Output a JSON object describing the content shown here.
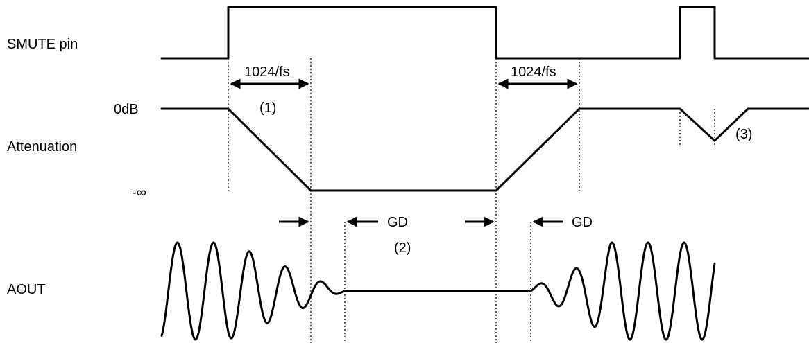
{
  "signals": {
    "smute_label": "SMUTE pin",
    "attenuation_label": "Attenuation",
    "aout_label": "AOUT"
  },
  "levels": {
    "zero_db": "0dB",
    "minus_inf": "-∞"
  },
  "intervals": {
    "fall_time": "1024/fs",
    "rise_time": "1024/fs",
    "group_delay_1": "GD",
    "group_delay_2": "GD"
  },
  "notes": {
    "n1": "(1)",
    "n2": "(2)",
    "n3": "(3)"
  }
}
